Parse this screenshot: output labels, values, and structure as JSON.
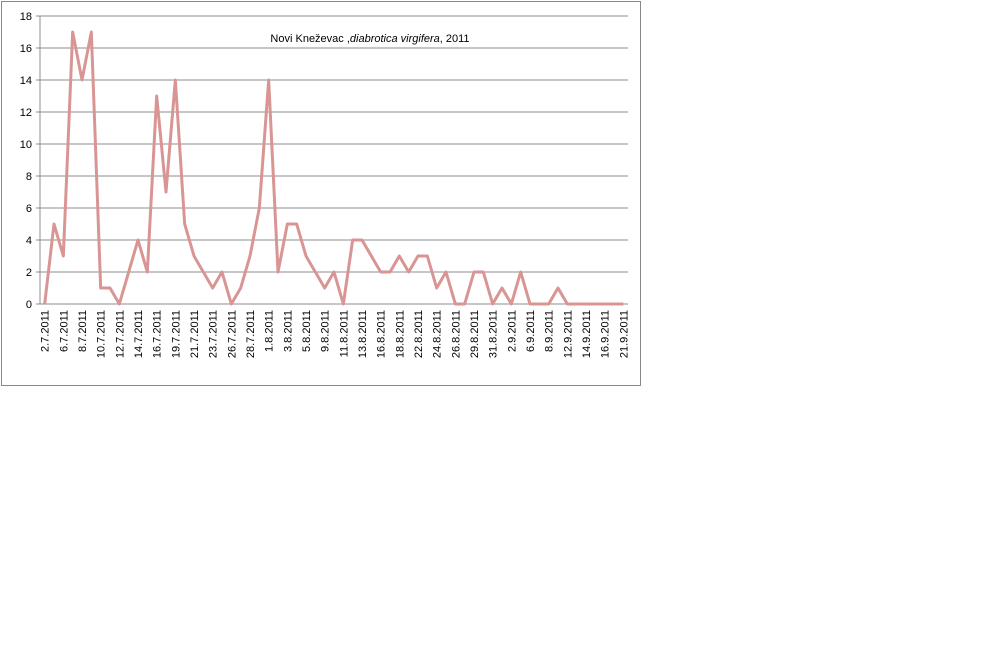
{
  "chart_data": {
    "type": "line",
    "title_parts": [
      "Novi Kneževac ,",
      "diabrotica virgifera",
      ", 2011"
    ],
    "categories": [
      "2.7.2011",
      null,
      "6.7.2011",
      null,
      "8.7.2011",
      null,
      "10.7.2011",
      null,
      "12.7.2011",
      null,
      "14.7.2011",
      null,
      "16.7.2011",
      null,
      "19.7.2011",
      null,
      "21.7.2011",
      null,
      "23.7.2011",
      null,
      "26.7.2011",
      null,
      "28.7.2011",
      null,
      "1.8.2011",
      null,
      "3.8.2011",
      null,
      "5.8.2011",
      null,
      "9.8.2011",
      null,
      "11.8.2011",
      null,
      "13.8.2011",
      null,
      "16.8.2011",
      null,
      "18.8.2011",
      null,
      "22.8.2011",
      null,
      "24.8.2011",
      null,
      "26.8.2011",
      null,
      "29.8.2011",
      null,
      "31.8.2011",
      null,
      "2.9.2011",
      null,
      "6.9.2011",
      null,
      "8.9.2011",
      null,
      "12.9.2011",
      null,
      "14.9.2011",
      null,
      "16.9.2011",
      null,
      "21.9.2011"
    ],
    "values": [
      0,
      5,
      3,
      17,
      14,
      17,
      1,
      1,
      0,
      2,
      4,
      2,
      13,
      7,
      14,
      5,
      3,
      2,
      1,
      2,
      0,
      1,
      3,
      6,
      14,
      2,
      5,
      5,
      3,
      2,
      1,
      2,
      0,
      4,
      4,
      3,
      2,
      2,
      3,
      2,
      3,
      3,
      1,
      2,
      0,
      0,
      2,
      2,
      0,
      1,
      0,
      2,
      0,
      0,
      0,
      1,
      0,
      0,
      0,
      0,
      0,
      0,
      0
    ],
    "color": "#d99594",
    "ylim": [
      0,
      18
    ],
    "yticks": [
      0,
      2,
      4,
      6,
      8,
      10,
      12,
      14,
      16,
      18
    ],
    "grid": true
  }
}
